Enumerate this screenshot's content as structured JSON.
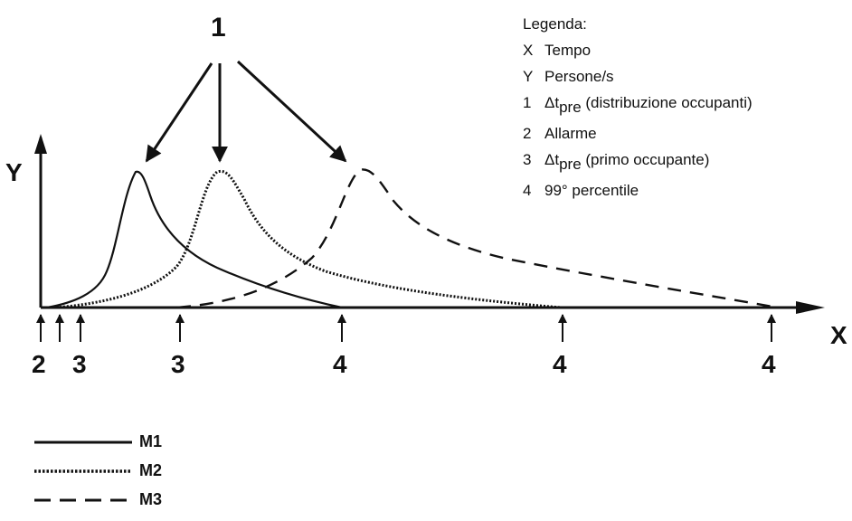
{
  "callout_label": "1",
  "axes": {
    "y_label": "Y",
    "x_label": "X"
  },
  "markers": [
    {
      "label": "2",
      "kind": "alarm"
    },
    {
      "label": "3",
      "kind": "first-occupant-m1"
    },
    {
      "label": "3",
      "kind": "first-occupant-m3"
    },
    {
      "label": "4",
      "kind": "percentile-m1"
    },
    {
      "label": "4",
      "kind": "percentile-m2"
    },
    {
      "label": "4",
      "kind": "percentile-m3"
    }
  ],
  "legend": {
    "title": "Legenda:",
    "items": [
      {
        "key": "X",
        "text": "Tempo"
      },
      {
        "key": "Y",
        "text": "Persone/s"
      },
      {
        "key": "1",
        "text_prefix": "Δt",
        "text_sub": "pre",
        "text_suffix": " (distribuzione occupanti)"
      },
      {
        "key": "2",
        "text": "Allarme"
      },
      {
        "key": "3",
        "text_prefix": "Δt",
        "text_sub": "pre",
        "text_suffix": " (primo occupante)"
      },
      {
        "key": "4",
        "text": "99° percentile"
      }
    ]
  },
  "series": [
    {
      "name": "M1",
      "style": "solid"
    },
    {
      "name": "M2",
      "style": "dotted"
    },
    {
      "name": "M3",
      "style": "dashed"
    }
  ],
  "colors": {
    "ink": "#111111",
    "background": "#ffffff"
  }
}
